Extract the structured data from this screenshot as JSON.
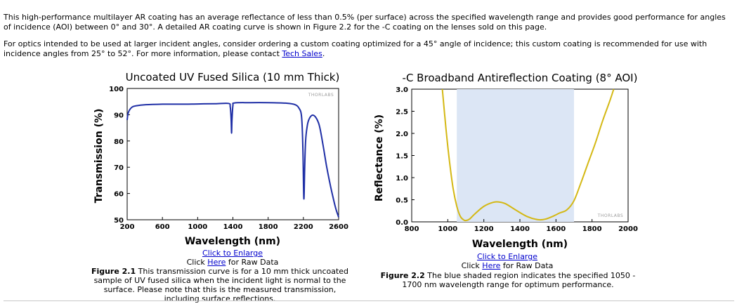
{
  "paragraphs": {
    "p1": "This high-performance multilayer AR coating has an average reflectance of less than 0.5% (per surface) across the specified wavelength range and provides good performance for angles of incidence (AOI) between 0° and 30°. A detailed AR coating curve is shown in Figure 2.2 for the -C coating on the lenses sold on this page.",
    "p2_before": "For optics intended to be used at larger incident angles, consider ordering a custom coating optimized for a 45° angle of incidence; this custom coating is recommended for use with incidence angles from 25° to 52°. For more information, please contact ",
    "p2_link": "Tech Sales",
    "p2_after": "."
  },
  "watermark": "THORLABS",
  "colors": {
    "curve_left": "#1f2fa6",
    "curve_right": "#d4b814",
    "band": "#dce6f5",
    "link": "#0000cc"
  },
  "figures": [
    {
      "enlarge_link": "Click to Enlarge",
      "raw_prefix": "Click ",
      "raw_link": "Here",
      "raw_suffix": " for Raw Data",
      "caption_label": "Figure 2.1",
      "caption_text": "  This transmission curve is for a 10 mm thick uncoated sample of UV fused silica when the incident light is normal to the surface. Please note that this is the measured transmission, including surface reflections."
    },
    {
      "enlarge_link": "Click to Enlarge",
      "raw_prefix": "Click ",
      "raw_link": "Here",
      "raw_suffix": " for Raw Data",
      "caption_label": "Figure 2.2",
      "caption_text": "  The blue shaded region indicates the specified 1050 - 1700 nm wavelength range for optimum performance."
    }
  ],
  "chart_data": [
    {
      "type": "line",
      "title": "Uncoated UV Fused Silica (10 mm Thick)",
      "xlabel": "Wavelength (nm)",
      "ylabel": "Transmission (%)",
      "xlim": [
        200,
        2600
      ],
      "ylim": [
        50,
        100
      ],
      "xticks": [
        "200",
        "600",
        "1000",
        "1400",
        "1800",
        "2200",
        "2600"
      ],
      "yticks": [
        "50",
        "60",
        "70",
        "80",
        "90",
        "100"
      ],
      "grid": false,
      "series": [
        {
          "x": [
            200,
            210,
            230,
            260,
            300,
            400,
            600,
            800,
            1000,
            1200,
            1350,
            1370,
            1380,
            1385,
            1390,
            1400,
            1420,
            1600,
            1800,
            2000,
            2100,
            2150,
            2180,
            2195,
            2205,
            2215,
            2225,
            2240,
            2260,
            2300,
            2340,
            2380,
            2420,
            2460,
            2500,
            2540,
            2570,
            2600
          ],
          "y": [
            88,
            90.5,
            92,
            93,
            93.4,
            93.8,
            94,
            94,
            94.1,
            94.2,
            94.3,
            93,
            88,
            83,
            88,
            93.5,
            94.5,
            94.6,
            94.6,
            94.4,
            93.9,
            92.5,
            89,
            76,
            58,
            70,
            80,
            85,
            88,
            89.8,
            89,
            86,
            79,
            71,
            64,
            58,
            54,
            51
          ]
        }
      ]
    },
    {
      "type": "line",
      "title": "-C Broadband Antireflection Coating (8° AOI)",
      "xlabel": "Wavelength (nm)",
      "ylabel": "Reflectance (%)",
      "xlim": [
        800,
        2000
      ],
      "ylim": [
        0,
        3
      ],
      "xticks": [
        "800",
        "1000",
        "1200",
        "1400",
        "1600",
        "1800",
        "2000"
      ],
      "yticks": [
        "0.0",
        "0.5",
        "1.0",
        "1.5",
        "2.0",
        "2.5",
        "3.0"
      ],
      "shaded_range": [
        1050,
        1700
      ],
      "grid": false,
      "series": [
        {
          "x": [
            970,
            990,
            1010,
            1030,
            1050,
            1070,
            1090,
            1100,
            1120,
            1150,
            1200,
            1250,
            1280,
            1320,
            1380,
            1440,
            1500,
            1540,
            1580,
            1620,
            1660,
            1700,
            1740,
            1780,
            1820,
            1860,
            1900,
            1920
          ],
          "y": [
            3.0,
            2.1,
            1.35,
            0.75,
            0.35,
            0.12,
            0.04,
            0.03,
            0.06,
            0.18,
            0.35,
            0.44,
            0.45,
            0.41,
            0.26,
            0.12,
            0.05,
            0.06,
            0.12,
            0.2,
            0.27,
            0.48,
            0.9,
            1.35,
            1.8,
            2.3,
            2.75,
            3.0
          ]
        }
      ]
    }
  ]
}
